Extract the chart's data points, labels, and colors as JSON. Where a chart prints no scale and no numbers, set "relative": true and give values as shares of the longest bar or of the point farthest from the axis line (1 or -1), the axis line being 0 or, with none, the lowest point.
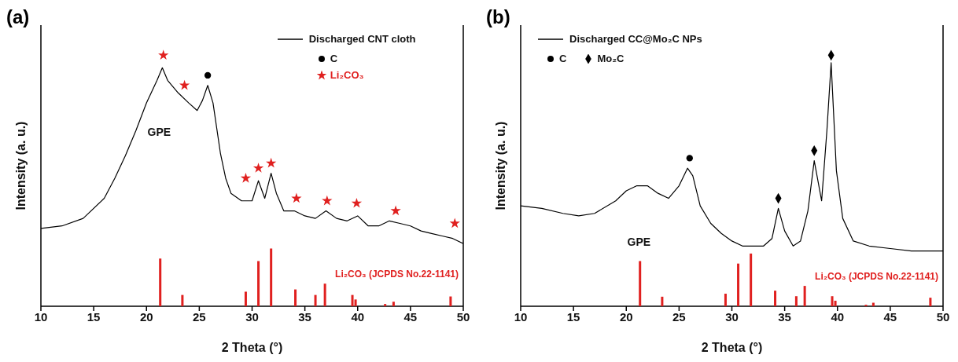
{
  "chart_data": [
    {
      "type": "line",
      "title": "(a)",
      "xlabel": "2 Theta (°)",
      "ylabel": "Intensity (a. u.)",
      "xlim": [
        10,
        50
      ],
      "xticks": [
        10,
        15,
        20,
        25,
        30,
        35,
        40,
        45,
        50
      ],
      "relative": true,
      "tick_labels": "x",
      "legend": "top right",
      "annotations": [
        "GPE"
      ],
      "series": [
        {
          "name": "Discharged CNT cloth",
          "color": "#000000",
          "x": [
            10,
            12,
            14,
            16,
            17,
            18,
            19,
            20,
            21,
            21.5,
            22,
            23,
            24,
            24.8,
            25.3,
            25.8,
            26.3,
            27,
            27.5,
            28,
            29,
            30,
            30.6,
            31.2,
            31.8,
            32.3,
            33,
            34,
            35,
            36,
            37,
            38,
            39,
            40,
            41,
            42,
            43,
            44,
            45,
            46,
            47,
            48,
            49,
            50
          ],
          "values": [
            0.31,
            0.32,
            0.35,
            0.43,
            0.51,
            0.6,
            0.7,
            0.81,
            0.9,
            0.95,
            0.9,
            0.85,
            0.81,
            0.78,
            0.82,
            0.88,
            0.81,
            0.61,
            0.51,
            0.45,
            0.42,
            0.42,
            0.5,
            0.43,
            0.53,
            0.45,
            0.38,
            0.38,
            0.36,
            0.35,
            0.38,
            0.35,
            0.34,
            0.36,
            0.32,
            0.32,
            0.34,
            0.33,
            0.32,
            0.3,
            0.29,
            0.28,
            0.27,
            0.25
          ]
        },
        {
          "name": "Li₂CO₃ (JCPDS No.22-1141)",
          "type": "bar",
          "color": "#e0201f",
          "x": [
            21.3,
            23.4,
            29.4,
            30.6,
            31.8,
            34.1,
            36.0,
            36.9,
            39.5,
            39.8,
            42.6,
            43.4,
            48.8
          ],
          "values": [
            0.19,
            0.045,
            0.058,
            0.18,
            0.23,
            0.067,
            0.045,
            0.09,
            0.045,
            0.027,
            0.009,
            0.018,
            0.039
          ]
        },
        {
          "name": "C",
          "type": "scatter",
          "marker": "circle",
          "color": "#000000",
          "x": [
            25.8
          ],
          "values": [
            0.92
          ]
        },
        {
          "name": "Li₂CO₃",
          "type": "scatter",
          "marker": "star",
          "color": "#e0201f",
          "x": [
            21.6,
            23.6,
            29.4,
            30.6,
            31.8,
            34.2,
            37.1,
            39.9,
            43.6,
            49.2
          ],
          "values": [
            1.0,
            0.88,
            0.51,
            0.55,
            0.57,
            0.43,
            0.42,
            0.41,
            0.38,
            0.33
          ]
        }
      ]
    },
    {
      "type": "line",
      "title": "(b)",
      "xlabel": "2 Theta (°)",
      "ylabel": "Intensity (a. u.)",
      "xlim": [
        10,
        50
      ],
      "xticks": [
        10,
        15,
        20,
        25,
        30,
        35,
        40,
        45,
        50
      ],
      "relative": true,
      "tick_labels": "x",
      "legend": "top left",
      "annotations": [
        "GPE"
      ],
      "series": [
        {
          "name": "Discharged CC@Mo₂C NPs",
          "color": "#000000",
          "x": [
            10,
            12,
            14,
            15.5,
            17,
            19,
            20,
            21,
            22,
            23,
            24,
            25,
            25.8,
            26.3,
            27,
            28,
            29,
            30,
            31,
            32,
            33,
            33.8,
            34.4,
            35,
            35.8,
            36.5,
            37.2,
            37.8,
            38.5,
            39,
            39.4,
            39.9,
            40.5,
            41.5,
            43,
            45,
            47,
            50
          ],
          "values": [
            0.4,
            0.39,
            0.37,
            0.36,
            0.37,
            0.42,
            0.46,
            0.48,
            0.48,
            0.45,
            0.43,
            0.48,
            0.55,
            0.52,
            0.4,
            0.33,
            0.29,
            0.26,
            0.24,
            0.24,
            0.24,
            0.27,
            0.39,
            0.3,
            0.24,
            0.26,
            0.38,
            0.58,
            0.42,
            0.7,
            0.97,
            0.54,
            0.35,
            0.26,
            0.24,
            0.23,
            0.22,
            0.22
          ]
        },
        {
          "name": "Li₂CO₃ (JCPDS No.22-1141)",
          "type": "bar",
          "color": "#e0201f",
          "x": [
            21.3,
            23.4,
            29.4,
            30.6,
            31.8,
            34.1,
            36.1,
            36.9,
            39.5,
            39.8,
            42.7,
            43.4,
            48.8
          ],
          "values": [
            0.18,
            0.038,
            0.05,
            0.17,
            0.21,
            0.062,
            0.04,
            0.081,
            0.04,
            0.022,
            0.006,
            0.014,
            0.034
          ]
        },
        {
          "name": "C",
          "type": "scatter",
          "marker": "circle",
          "color": "#000000",
          "x": [
            26.0
          ],
          "values": [
            0.59
          ]
        },
        {
          "name": "Mo₂C",
          "type": "scatter",
          "marker": "diamond",
          "color": "#000000",
          "x": [
            34.4,
            37.8,
            39.4
          ],
          "values": [
            0.43,
            0.62,
            1.0
          ]
        }
      ]
    }
  ]
}
